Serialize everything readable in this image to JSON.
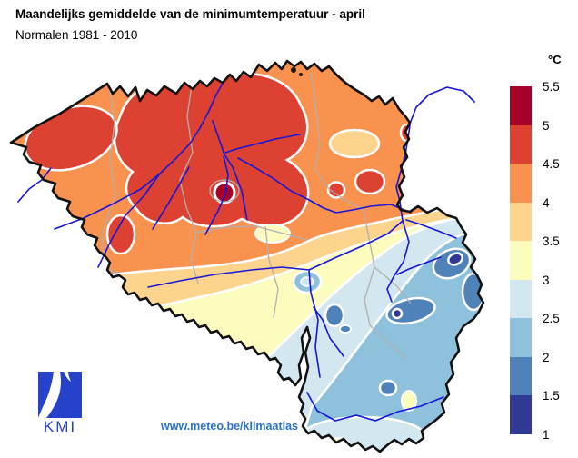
{
  "header": {
    "title": "Maandelijks gemiddelde van de minimumtemperatuur - april",
    "subtitle": "Normalen 1981 - 2010"
  },
  "legend": {
    "unit": "°C",
    "tick_labels": [
      "5.5",
      "5",
      "4.5",
      "4",
      "3.5",
      "3",
      "2.5",
      "2",
      "1.5",
      "1"
    ],
    "bands": [
      {
        "range": "5 – 5.5",
        "color": "#a50129"
      },
      {
        "range": "4.5 – 5",
        "color": "#dc4132"
      },
      {
        "range": "4 – 4.5",
        "color": "#f9914f"
      },
      {
        "range": "3.5 – 4",
        "color": "#fdd48e"
      },
      {
        "range": "3 – 3.5",
        "color": "#fcfcbe"
      },
      {
        "range": "2.5 – 3",
        "color": "#d3e7f0"
      },
      {
        "range": "2 – 2.5",
        "color": "#8ec1dc"
      },
      {
        "range": "1.5 – 2",
        "color": "#4e82b8"
      },
      {
        "range": "1 – 1.5",
        "color": "#303a94"
      }
    ]
  },
  "map": {
    "country_border_color": "#111111",
    "province_border_color": "#b0b0b0",
    "river_color": "#1616d9",
    "contour_line_color": "#ffffff"
  },
  "footer": {
    "logo_text": "KMI",
    "logo_color": "#2642cb",
    "url": "www.meteo.be/klimaatlas",
    "url_color": "#2b72c4"
  }
}
